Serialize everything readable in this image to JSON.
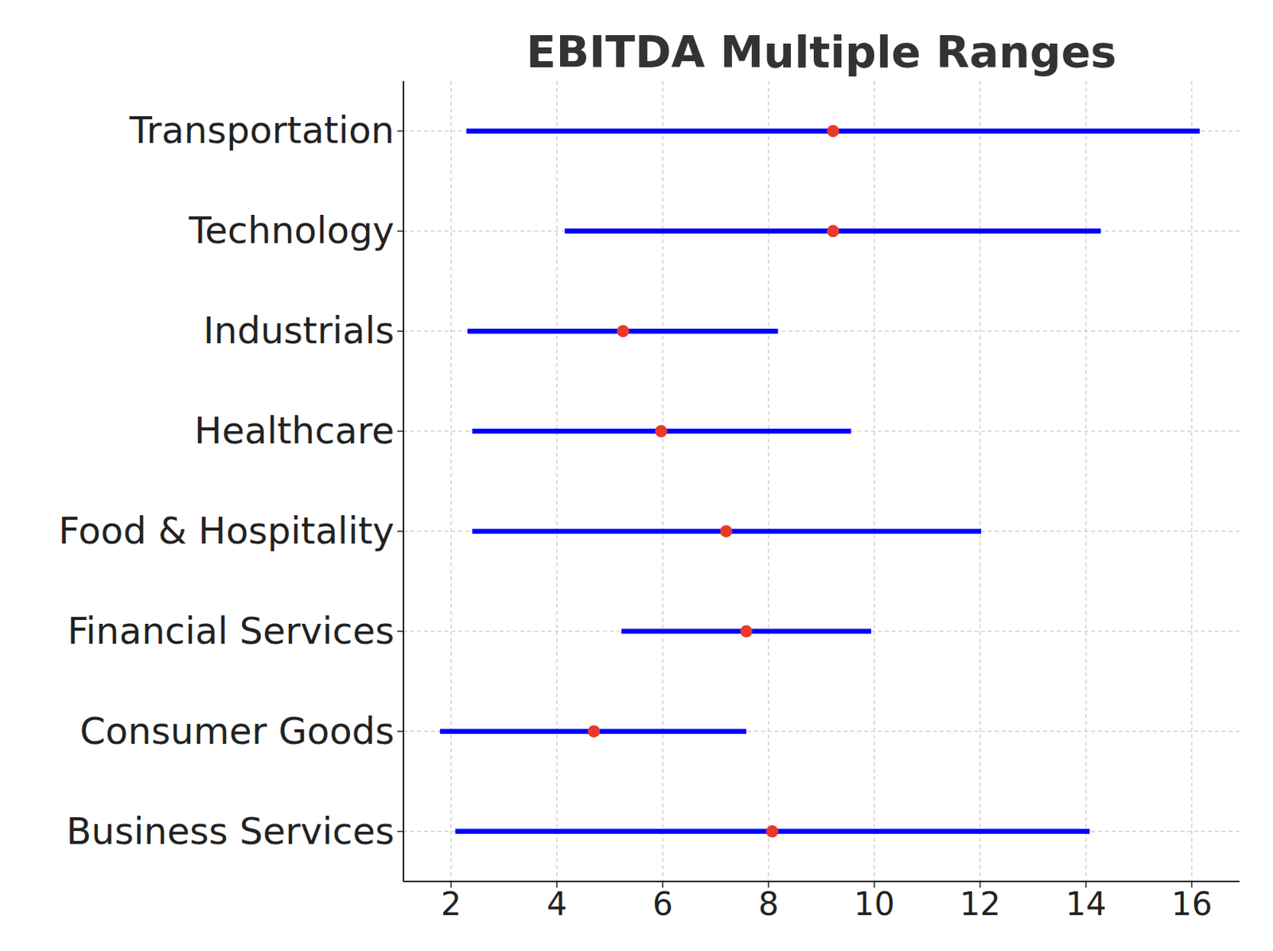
{
  "chart_data": {
    "type": "range",
    "title": "EBITDA Multiple Ranges",
    "categories": [
      "Business Services",
      "Consumer Goods",
      "Financial Services",
      "Food & Hospitality",
      "Healthcare",
      "Industrials",
      "Technology",
      "Transportation"
    ],
    "series": [
      {
        "type": "range",
        "color": "#0000ff",
        "low": [
          2.08,
          1.79,
          5.22,
          2.4,
          2.4,
          2.31,
          4.15,
          2.29
        ],
        "high": [
          14.07,
          7.58,
          9.94,
          12.02,
          9.56,
          8.18,
          14.28,
          16.15
        ]
      },
      {
        "type": "scatter",
        "color": "#e8392b",
        "marker": "circle",
        "values": [
          8.07,
          4.7,
          7.58,
          7.2,
          5.97,
          5.25,
          9.22,
          9.22
        ]
      }
    ],
    "orientation": "horizontal",
    "xlim": [
      1.1,
      16.9
    ],
    "xticks": [
      2,
      4,
      6,
      8,
      10,
      12,
      14,
      16
    ],
    "grid": true
  }
}
